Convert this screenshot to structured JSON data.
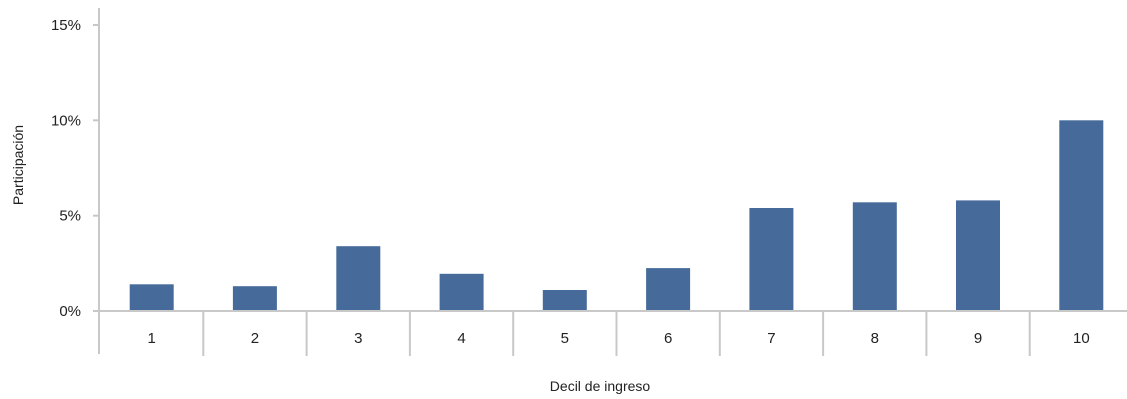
{
  "chart_data": {
    "type": "bar",
    "title": "",
    "xlabel": "Decil de ingreso",
    "ylabel": "Participación",
    "categories": [
      "1",
      "2",
      "3",
      "4",
      "5",
      "6",
      "7",
      "8",
      "9",
      "10"
    ],
    "values": [
      1.4,
      1.3,
      3.4,
      1.95,
      1.1,
      2.25,
      5.4,
      5.7,
      5.8,
      10.0
    ],
    "ylim": [
      0,
      15
    ],
    "yticks": [
      0,
      5,
      10,
      15
    ],
    "ytick_labels": [
      "0%",
      "5%",
      "10%",
      "15%"
    ],
    "grid": false,
    "legend": "none",
    "bar_color": "#466b9b",
    "axis_color": "#c8c8c8"
  }
}
